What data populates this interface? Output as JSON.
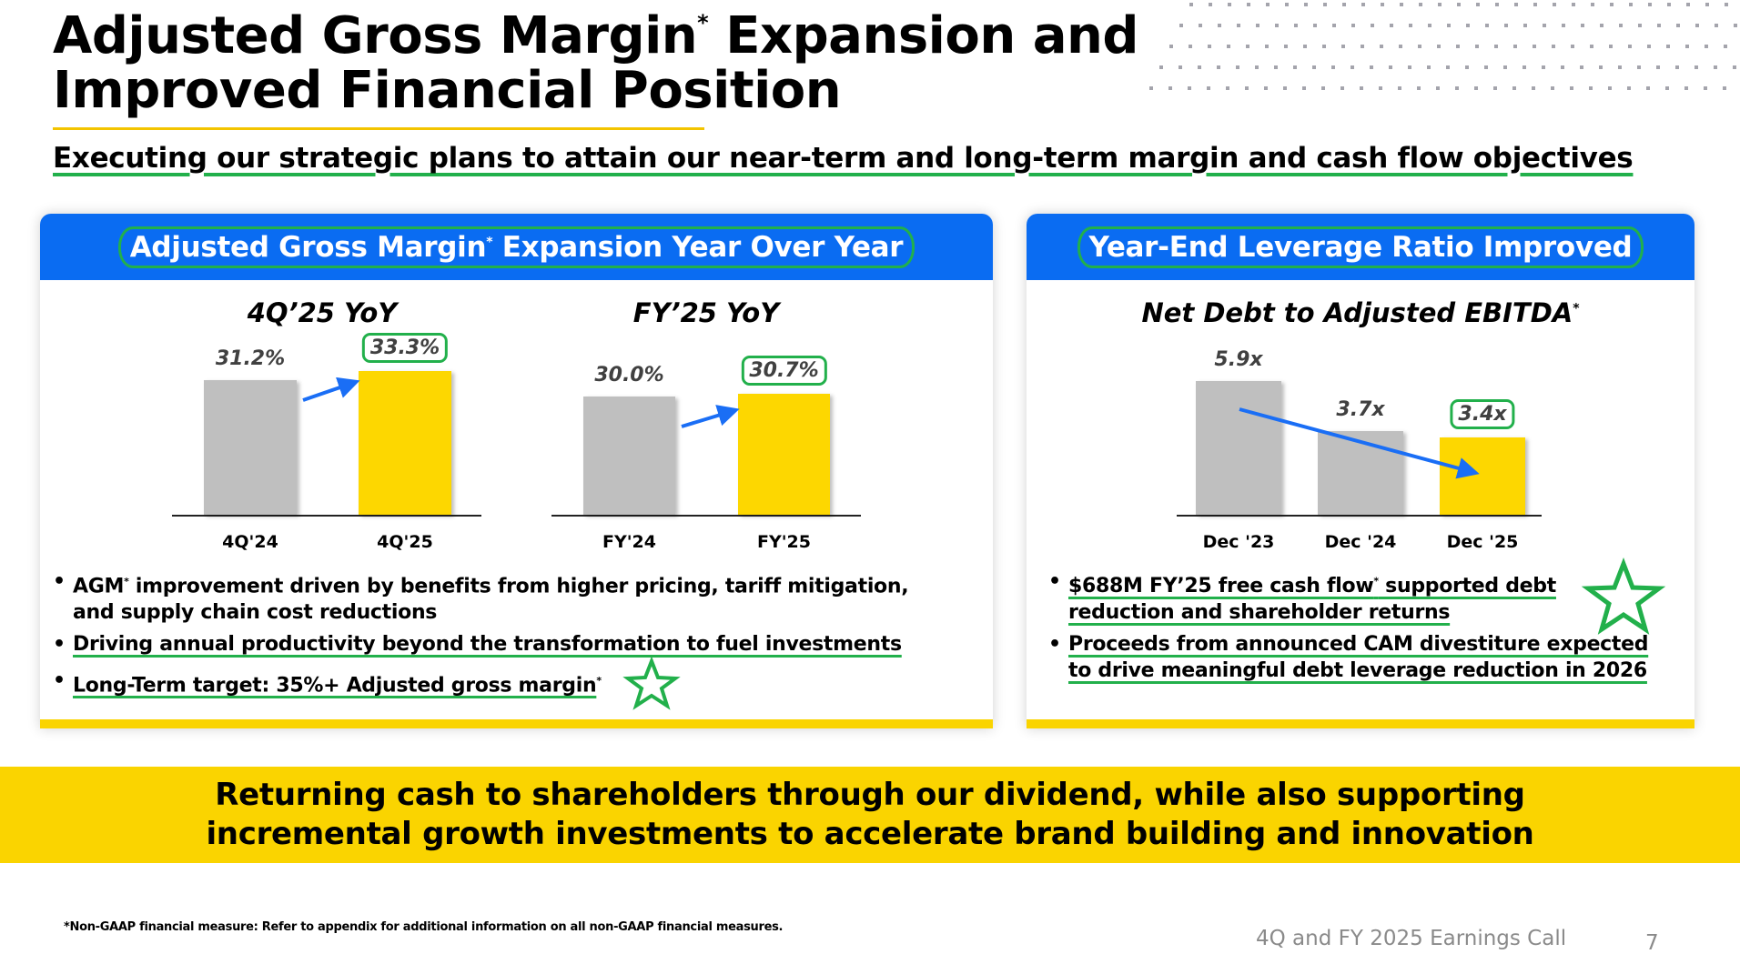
{
  "header": {
    "title_line1": "Adjusted Gross Margin",
    "title_asterisk": "*",
    "title_line1_rest": " Expansion and",
    "title_line2": "Improved Financial Position",
    "subtitle": "Executing our strategic plans to attain our near-term and long-term margin and cash flow objectives"
  },
  "left_card": {
    "heading": "Adjusted Gross Margin",
    "heading_asterisk": "*",
    "heading_rest": " Expansion Year Over Year",
    "bullets": [
      {
        "pre": "AGM",
        "sup": "*",
        "text": " improvement driven by benefits from higher pricing, tariff mitigation,",
        "text2": "and supply chain cost reductions"
      },
      {
        "text": "Driving annual productivity beyond the transformation to fuel investments"
      },
      {
        "text": "Long-Term target: 35%+ Adjusted gross margin",
        "sup": "*"
      }
    ]
  },
  "right_card": {
    "heading": "Year-End Leverage Ratio Improved",
    "bullets": [
      {
        "text": "$688M FY’25 free cash flow",
        "sup": "*",
        "text_rest": " supported debt",
        "text2": "reduction and shareholder returns"
      },
      {
        "text": "Proceeds from announced CAM divestiture expected",
        "text2": "to drive meaningful debt leverage reduction in 2026"
      }
    ]
  },
  "chart_data": [
    {
      "type": "bar",
      "title": "4Q’25 YoY",
      "categories": [
        "4Q'24",
        "4Q'25"
      ],
      "values": [
        31.2,
        33.3
      ],
      "value_labels": [
        "31.2%",
        "33.3%"
      ],
      "unit": "%",
      "highlight": 1,
      "colors": [
        "#bfbfbf",
        "#fdd700"
      ],
      "trend": "up"
    },
    {
      "type": "bar",
      "title": "FY’25 YoY",
      "categories": [
        "FY'24",
        "FY'25"
      ],
      "values": [
        30.0,
        30.7
      ],
      "value_labels": [
        "30.0%",
        "30.7%"
      ],
      "unit": "%",
      "highlight": 1,
      "colors": [
        "#bfbfbf",
        "#fdd700"
      ],
      "trend": "up"
    },
    {
      "type": "bar",
      "title": "Net Debt to Adjusted EBITDA",
      "title_asterisk": "*",
      "categories": [
        "Dec '23",
        "Dec '24",
        "Dec '25"
      ],
      "values": [
        5.9,
        3.7,
        3.4
      ],
      "value_labels": [
        "5.9x",
        "3.7x",
        "3.4x"
      ],
      "unit": "x",
      "highlight": 2,
      "colors": [
        "#bfbfbf",
        "#bfbfbf",
        "#fdd700"
      ],
      "trend": "down"
    }
  ],
  "banner": {
    "line1": "Returning cash to shareholders through our dividend, while also supporting",
    "line2": "incremental growth investments to accelerate brand building and innovation"
  },
  "footer": {
    "footnote": "*Non-GAAP financial measure: Refer to appendix for additional information on all non-GAAP financial measures.",
    "event": "4Q and FY 2025 Earnings Call",
    "page": "7"
  },
  "colors": {
    "brand_blue": "#0a6cf2",
    "brand_yellow": "#fad400",
    "highlight_green": "#22b04b",
    "arrow_blue": "#1a6ef5"
  }
}
